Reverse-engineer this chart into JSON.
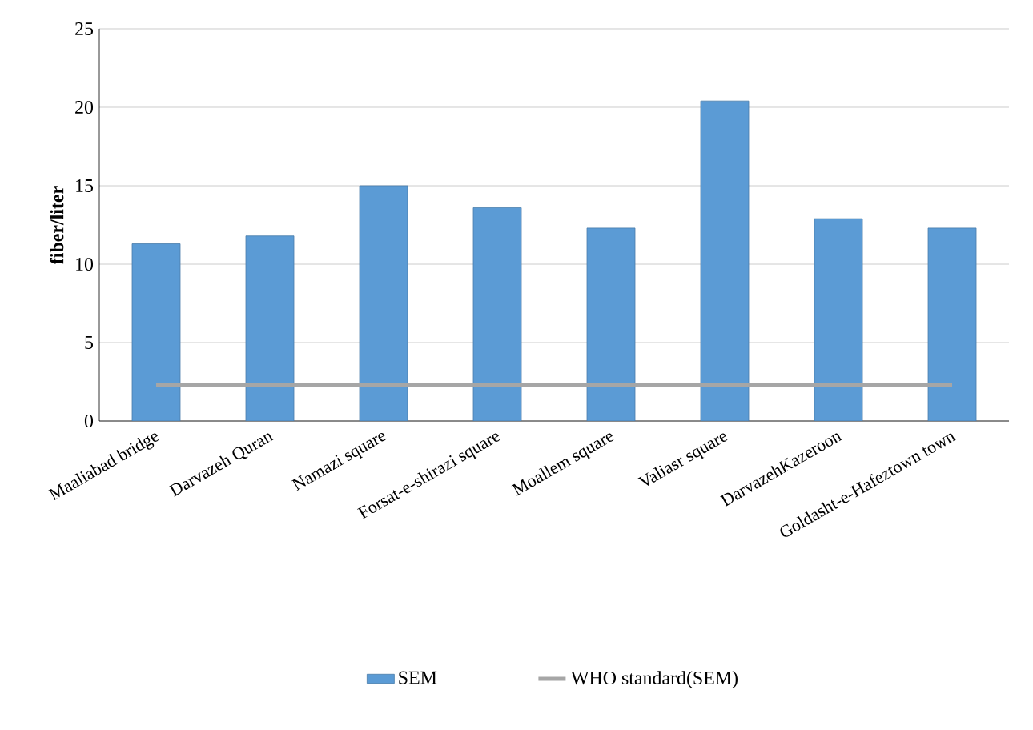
{
  "chart_data": {
    "type": "bar",
    "ylabel": "fiber/liter",
    "categories": [
      "Maaliabad bridge",
      "Darvazeh Quran",
      "Namazi square",
      "Forsat-e-shirazi square",
      "Moallem square",
      "Valiasr square",
      "DarvazehKazeroon",
      "Goldasht-e-Hafeztown town"
    ],
    "series": [
      {
        "name": "SEM",
        "color": "#5b9bd5",
        "values": [
          11.3,
          11.8,
          15.0,
          13.6,
          12.3,
          20.4,
          12.9,
          12.3
        ]
      },
      {
        "name": "WHO standard(SEM)",
        "type": "line",
        "color": "#a6a6a6",
        "values": [
          2.3,
          2.3,
          2.3,
          2.3,
          2.3,
          2.3,
          2.3,
          2.3
        ]
      }
    ],
    "ylim": [
      0,
      25
    ],
    "yticks": [
      0,
      5,
      10,
      15,
      20,
      25
    ],
    "grid": "y",
    "legend": "bottom"
  }
}
